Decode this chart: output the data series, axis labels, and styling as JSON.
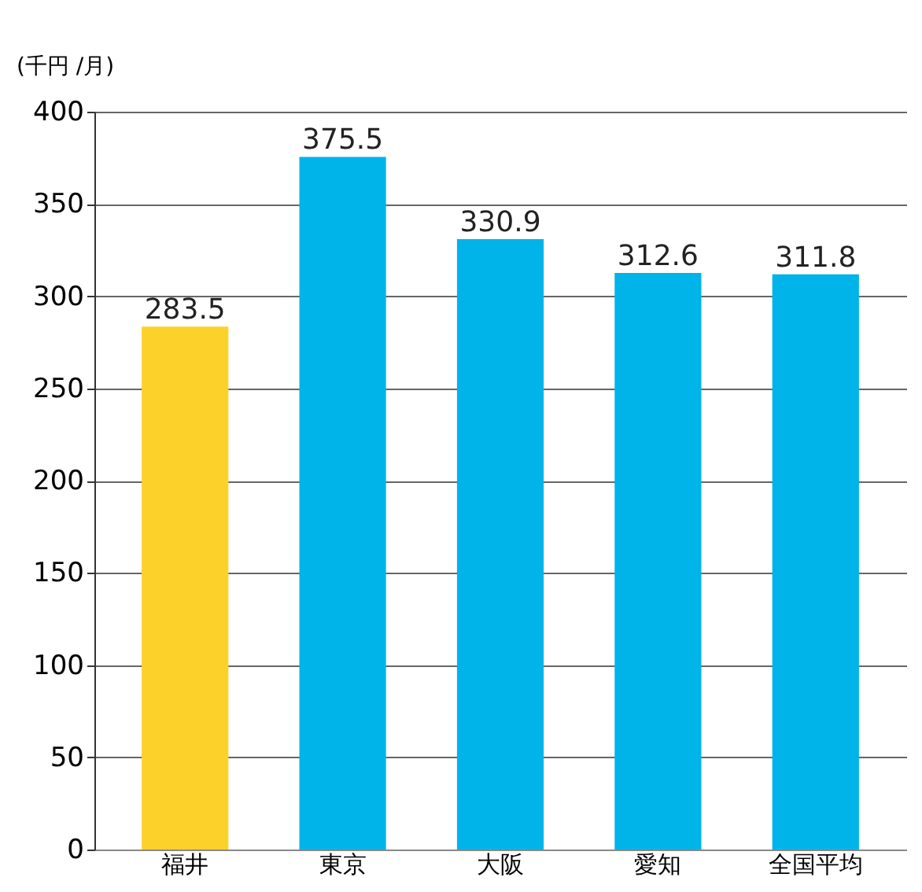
{
  "chart_data": {
    "type": "bar",
    "ylabel": "(千円 /月)",
    "categories": [
      "福井",
      "東京",
      "大阪",
      "愛知",
      "全国平均"
    ],
    "values": [
      283.5,
      375.5,
      330.9,
      312.6,
      311.8
    ],
    "colors": [
      "#fcd22a",
      "#00b4ea",
      "#00b4ea",
      "#00b4ea",
      "#00b4ea"
    ],
    "ylim": [
      0,
      400
    ],
    "yticks": [
      0,
      50,
      100,
      150,
      200,
      250,
      300,
      350,
      400
    ],
    "grid": "y",
    "data_labels": true
  }
}
